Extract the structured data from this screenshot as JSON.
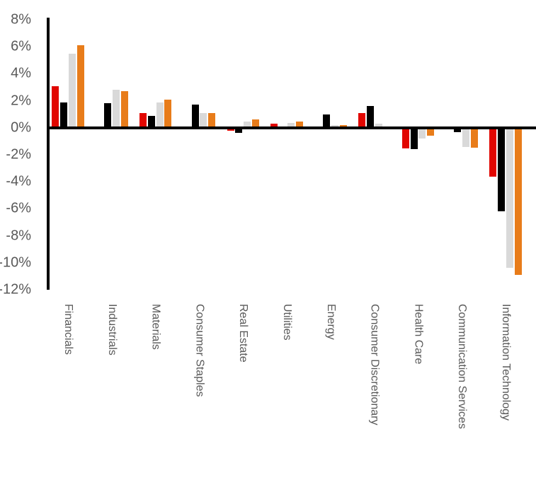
{
  "page": {
    "background": "#ffffff",
    "title": ""
  },
  "chart_data": {
    "type": "bar",
    "title": "",
    "subtitle": "",
    "legend": "none",
    "grid": false,
    "categories": [
      "Financials",
      "Industrials",
      "Materials",
      "Consumer Staples",
      "Real Estate",
      "Utilities",
      "Energy",
      "Consumer Discretionary",
      "Health Care",
      "Communication Services",
      "Information Technology"
    ],
    "series": [
      {
        "name": "red",
        "color": "#e10600",
        "values": [
          3.1,
          0,
          1.1,
          0,
          -0.2,
          0.3,
          -0.1,
          1.1,
          -1.55,
          0.1,
          -3.6
        ]
      },
      {
        "name": "black",
        "color": "#000000",
        "values": [
          1.9,
          1.8,
          0.9,
          1.7,
          -0.4,
          0,
          1.0,
          1.6,
          -1.6,
          -0.35,
          -6.2
        ]
      },
      {
        "name": "gray",
        "color": "#d9d9d9",
        "values": [
          5.5,
          2.8,
          1.9,
          1.1,
          0.45,
          0.35,
          0.2,
          0.3,
          -0.8,
          -1.4,
          -10.4
        ]
      },
      {
        "name": "orange",
        "color": "#e87c1a",
        "values": [
          6.1,
          2.7,
          2.1,
          1.1,
          0.6,
          0.45,
          0.2,
          -0.1,
          -0.6,
          -1.5,
          -10.9
        ]
      }
    ],
    "y_axis": {
      "min": -12,
      "max": 8,
      "tick_step": 2,
      "unit": "%",
      "tick_labels": [
        "8%",
        "6%",
        "4%",
        "2%",
        "0%",
        "-2%",
        "-4%",
        "-6%",
        "-8%",
        "-10%",
        "-12%"
      ]
    },
    "x_axis": {
      "label": "",
      "label_rotation_deg": 90
    },
    "colors": {
      "axis": "#000000",
      "tick_label": "#595959",
      "category_label": "#595959"
    }
  }
}
